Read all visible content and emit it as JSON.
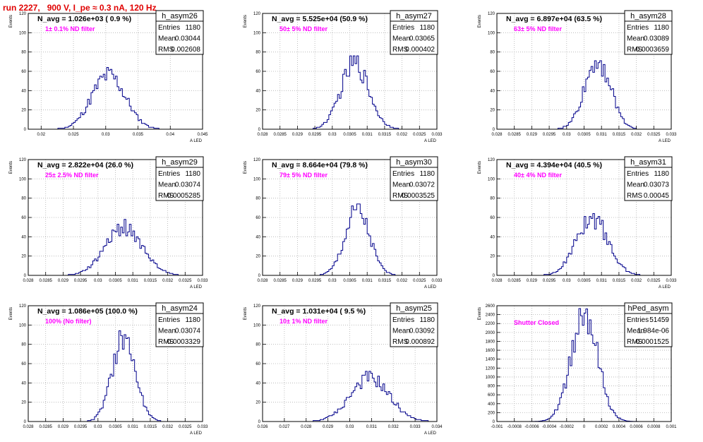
{
  "run_title": "run 2227,   900 V, I_pe ≈ 0.3 nA, 120 Hz",
  "colors": {
    "hist": "#00008b",
    "annotation": "#ff00ff",
    "title": "#e00000",
    "grid": "#b0b0b0"
  },
  "chart_data": [
    {
      "type": "histogram",
      "stats_title": "h_asym26",
      "navg": "N_avg = 1.026e+03 ( 0.9 %)",
      "note": "1± 0.1% ND filter",
      "stats": [
        [
          "Entries",
          "1180"
        ],
        [
          "Mean",
          "0.03044"
        ],
        [
          "RMS",
          "0.002608"
        ]
      ],
      "ylabel": "Events",
      "xlabel": "A_LED",
      "xlim": [
        0.018,
        0.045
      ],
      "ylim": [
        0,
        120
      ],
      "xticks": [
        0.02,
        0.025,
        0.03,
        0.035,
        0.04,
        0.045
      ],
      "xtick_labels": [
        "0.02",
        "0.025",
        "0.03",
        "0.035",
        "0.04",
        "0.045"
      ],
      "yticks": [
        0,
        20,
        40,
        60,
        80,
        100,
        120
      ],
      "mean": 0.03044,
      "sigma": 0.0026,
      "peak": 56
    },
    {
      "type": "histogram",
      "stats_title": "h_asym27",
      "navg": "N_avg = 5.525e+04 (50.9 %)",
      "note": "50± 5% ND filter",
      "stats": [
        [
          "Entries",
          "1180"
        ],
        [
          "Mean",
          "0.03065"
        ],
        [
          "RMS",
          "0.000402"
        ]
      ],
      "ylabel": "Events",
      "xlabel": "A_LED",
      "xlim": [
        0.028,
        0.033
      ],
      "ylim": [
        0,
        120
      ],
      "xticks": [
        0.028,
        0.0285,
        0.029,
        0.0295,
        0.03,
        0.0305,
        0.031,
        0.0315,
        0.032,
        0.0325,
        0.033
      ],
      "xtick_labels": [
        "0.028",
        "0.0285",
        "0.029",
        "0.0295",
        "0.03",
        "0.0305",
        "0.031",
        "0.0315",
        "0.032",
        "0.0325",
        "0.033"
      ],
      "yticks": [
        0,
        20,
        40,
        60,
        80,
        100,
        120
      ],
      "mean": 0.03065,
      "sigma": 0.0004,
      "peak": 68
    },
    {
      "type": "histogram",
      "stats_title": "h_asym28",
      "navg": "N_avg = 6.897e+04 (63.5 %)",
      "note": "63± 5% ND filter",
      "stats": [
        [
          "Entries",
          "1180"
        ],
        [
          "Mean",
          "0.03089"
        ],
        [
          "RMS",
          "0.0003659"
        ]
      ],
      "ylabel": "Events",
      "xlabel": "A_LED",
      "xlim": [
        0.028,
        0.033
      ],
      "ylim": [
        0,
        120
      ],
      "xticks": [
        0.028,
        0.0285,
        0.029,
        0.0295,
        0.03,
        0.0305,
        0.031,
        0.0315,
        0.032,
        0.0325,
        0.033
      ],
      "xtick_labels": [
        "0.028",
        "0.0285",
        "0.029",
        "0.0295",
        "0.03",
        "0.0305",
        "0.031",
        "0.0315",
        "0.032",
        "0.0325",
        "0.033"
      ],
      "yticks": [
        0,
        20,
        40,
        60,
        80,
        100,
        120
      ],
      "mean": 0.03089,
      "sigma": 0.00037,
      "peak": 72
    },
    {
      "type": "histogram",
      "stats_title": "h_asym29",
      "navg": "N_avg = 2.822e+04 (26.0 %)",
      "note": "25± 2.5% ND filter",
      "stats": [
        [
          "Entries",
          "1180"
        ],
        [
          "Mean",
          "0.03074"
        ],
        [
          "RMS",
          "0.0005285"
        ]
      ],
      "ylabel": "Events",
      "xlabel": "A_LED",
      "xlim": [
        0.028,
        0.033
      ],
      "ylim": [
        0,
        120
      ],
      "xticks": [
        0.028,
        0.0285,
        0.029,
        0.0295,
        0.03,
        0.0305,
        0.031,
        0.0315,
        0.032,
        0.0325,
        0.033
      ],
      "xtick_labels": [
        "0.028",
        "0.0285",
        "0.029",
        "0.0295",
        "0.03",
        "0.0305",
        "0.031",
        "0.0315",
        "0.032",
        "0.0325",
        "0.033"
      ],
      "yticks": [
        0,
        20,
        40,
        60,
        80,
        100,
        120
      ],
      "mean": 0.03074,
      "sigma": 0.00053,
      "peak": 50
    },
    {
      "type": "histogram",
      "stats_title": "h_asym30",
      "navg": "N_avg = 8.664e+04 (79.8 %)",
      "note": "79± 5% ND filter",
      "stats": [
        [
          "Entries",
          "1180"
        ],
        [
          "Mean",
          "0.03072"
        ],
        [
          "RMS",
          "0.0003525"
        ]
      ],
      "ylabel": "Events",
      "xlabel": "A_LED",
      "xlim": [
        0.028,
        0.033
      ],
      "ylim": [
        0,
        120
      ],
      "xticks": [
        0.028,
        0.0285,
        0.029,
        0.0295,
        0.03,
        0.0305,
        0.031,
        0.0315,
        0.032,
        0.0325,
        0.033
      ],
      "xtick_labels": [
        "0.028",
        "0.0285",
        "0.029",
        "0.0295",
        "0.03",
        "0.0305",
        "0.031",
        "0.0315",
        "0.032",
        "0.0325",
        "0.033"
      ],
      "yticks": [
        0,
        20,
        40,
        60,
        80,
        100,
        120
      ],
      "mean": 0.03072,
      "sigma": 0.00035,
      "peak": 67
    },
    {
      "type": "histogram",
      "stats_title": "h_asym31",
      "navg": "N_avg = 4.394e+04 (40.5 %)",
      "note": "40± 4% ND filter",
      "stats": [
        [
          "Entries",
          "1180"
        ],
        [
          "Mean",
          "0.03073"
        ],
        [
          "RMS",
          "0.00045"
        ]
      ],
      "ylabel": "Events",
      "xlabel": "A_LED",
      "xlim": [
        0.028,
        0.033
      ],
      "ylim": [
        0,
        120
      ],
      "xticks": [
        0.028,
        0.0285,
        0.029,
        0.0295,
        0.03,
        0.0305,
        0.031,
        0.0315,
        0.032,
        0.0325,
        0.033
      ],
      "xtick_labels": [
        "0.028",
        "0.0285",
        "0.029",
        "0.0295",
        "0.03",
        "0.0305",
        "0.031",
        "0.0315",
        "0.032",
        "0.0325",
        "0.033"
      ],
      "yticks": [
        0,
        20,
        40,
        60,
        80,
        100,
        120
      ],
      "mean": 0.03073,
      "sigma": 0.00045,
      "peak": 60
    },
    {
      "type": "histogram",
      "stats_title": "h_asym24",
      "navg": "N_avg = 1.086e+05 (100.0 %)",
      "note": "100% (No filter)",
      "stats": [
        [
          "Entries",
          "1180"
        ],
        [
          "Mean",
          "0.03074"
        ],
        [
          "RMS",
          "0.0003329"
        ]
      ],
      "ylabel": "Events",
      "xlabel": "A_LED",
      "xlim": [
        0.028,
        0.033
      ],
      "ylim": [
        0,
        120
      ],
      "xticks": [
        0.028,
        0.0285,
        0.029,
        0.0295,
        0.03,
        0.0305,
        0.031,
        0.0315,
        0.032,
        0.0325,
        0.033
      ],
      "xtick_labels": [
        "0.028",
        "0.0285",
        "0.029",
        "0.0295",
        "0.03",
        "0.0305",
        "0.031",
        "0.0315",
        "0.032",
        "0.0325",
        "0.033"
      ],
      "yticks": [
        0,
        20,
        40,
        60,
        80,
        100,
        120
      ],
      "mean": 0.03074,
      "sigma": 0.00033,
      "peak": 88
    },
    {
      "type": "histogram",
      "stats_title": "h_asym25",
      "navg": "N_avg = 1.031e+04 ( 9.5 %)",
      "note": "10± 1% ND filter",
      "stats": [
        [
          "Entries",
          "1180"
        ],
        [
          "Mean",
          "0.03092"
        ],
        [
          "RMS",
          "0.000892"
        ]
      ],
      "ylabel": "Events",
      "xlabel": "A_LED",
      "xlim": [
        0.026,
        0.034
      ],
      "ylim": [
        0,
        120
      ],
      "xticks": [
        0.026,
        0.027,
        0.028,
        0.029,
        0.03,
        0.031,
        0.032,
        0.033,
        0.034
      ],
      "xtick_labels": [
        "0.026",
        "0.027",
        "0.028",
        "0.029",
        "0.03",
        "0.031",
        "0.032",
        "0.033",
        "0.034"
      ],
      "yticks": [
        0,
        20,
        40,
        60,
        80,
        100,
        120
      ],
      "mean": 0.03092,
      "sigma": 0.00089,
      "peak": 45
    },
    {
      "type": "histogram",
      "stats_title": "hPed_asym",
      "navg": "",
      "note": "Shutter Closed",
      "stats": [
        [
          "Entries",
          "51459"
        ],
        [
          "Mean",
          "1.984e-06"
        ],
        [
          "RMS",
          "0.0001525"
        ]
      ],
      "ylabel": "Events",
      "xlabel": "",
      "xlim": [
        -0.001,
        0.001
      ],
      "ylim": [
        0,
        2600
      ],
      "xticks": [
        -0.001,
        -0.0008,
        -0.0006,
        -0.0004,
        -0.0002,
        0,
        0.0002,
        0.0004,
        0.0006,
        0.0008,
        0.001
      ],
      "xtick_labels": [
        "-0.001",
        "-0.0008",
        "-0.0006",
        "-0.0004",
        "-0.0002",
        "0",
        "0.0002",
        "0.0004",
        "0.0006",
        "0.0008",
        "0.001"
      ],
      "yticks": [
        0,
        200,
        400,
        600,
        800,
        1000,
        1200,
        1400,
        1600,
        1800,
        2000,
        2200,
        2400,
        2600
      ],
      "mean": 2e-06,
      "sigma": 0.000152,
      "peak": 2420
    }
  ]
}
